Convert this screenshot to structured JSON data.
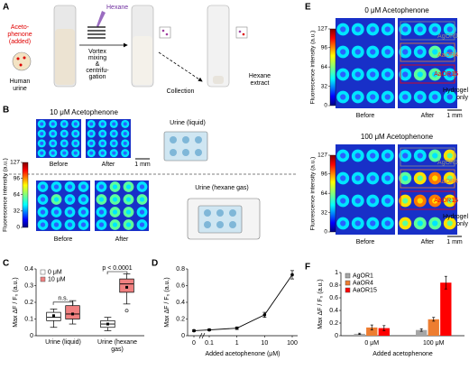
{
  "panel_a": {
    "letter": "A",
    "acetophenone": [
      "Aceto-",
      "phenone",
      "(added)"
    ],
    "urine": [
      "Human",
      "urine"
    ],
    "hexane": "Hexane",
    "vortex": [
      "Vortex",
      "mixing",
      "&",
      "centrifu-",
      "gation"
    ],
    "collection": "Collection",
    "extract": [
      "Hexane",
      "extract"
    ]
  },
  "panel_b": {
    "letter": "B",
    "title": "10 μM Acetophenone",
    "before": "Before",
    "after": "After",
    "scale": "1 mm",
    "liquid": "Urine (liquid)",
    "gas": "Urine (hexane gas)",
    "colorbar_label": "Fluorescence intensity (a.u.)",
    "colorbar_lim": [
      0,
      127
    ],
    "colorbar_ticks": [
      127,
      96,
      64,
      32,
      0
    ]
  },
  "panel_e": {
    "letter": "E",
    "titles": [
      "0 μM Acetophenone",
      "100 μM Acetophenone"
    ],
    "before": "Before",
    "after": "After",
    "scale": "1 mm",
    "colorbar_label": "Fluorescence intensity (a.u.)",
    "colorbar_lim": [
      0,
      127
    ],
    "colorbar_ticks": [
      127,
      96,
      64,
      32,
      0
    ],
    "labels": [
      "AgOR1",
      "AaOR4",
      "AaOR15"
    ],
    "label_colors": [
      "#8c8c8c",
      "#ed7d31",
      "#ff0000"
    ],
    "hydrogel": [
      "Hydrogel",
      "only"
    ]
  },
  "chart_data": [
    {
      "type": "box",
      "letter": "C",
      "categories": [
        "Urine (liquid)",
        "Urine (hexane gas)"
      ],
      "ylabel": "Max ΔF / F₀ (a.u.)",
      "ylim": [
        0,
        0.4
      ],
      "yticks": [
        0,
        0.1,
        0.2,
        0.3,
        0.4
      ],
      "series": [
        {
          "name": "0 μM",
          "color": "#ffffff",
          "min": [
            0.05,
            0.03
          ],
          "q1": [
            0.09,
            0.05
          ],
          "median": [
            0.11,
            0.07
          ],
          "q3": [
            0.14,
            0.09
          ],
          "max": [
            0.16,
            0.11
          ],
          "mean": [
            0.12,
            0.07
          ],
          "outliers": [
            [],
            []
          ]
        },
        {
          "name": "10 μM",
          "color": "#f08080",
          "min": [
            0.07,
            0.19
          ],
          "q1": [
            0.1,
            0.26
          ],
          "median": [
            0.13,
            0.31
          ],
          "q3": [
            0.18,
            0.34
          ],
          "max": [
            0.21,
            0.37
          ],
          "mean": [
            0.13,
            0.29
          ],
          "outliers": [
            [],
            [
              0.15
            ]
          ]
        }
      ],
      "annotations": [
        "n.s.",
        "p < 0.0001"
      ]
    },
    {
      "type": "line",
      "letter": "D",
      "x": [
        0,
        0.1,
        1,
        10,
        100
      ],
      "values": [
        0.06,
        0.07,
        0.09,
        0.25,
        0.73
      ],
      "errors": [
        0.01,
        0.01,
        0.015,
        0.03,
        0.05
      ],
      "xscale": "log",
      "xlim": [
        0,
        100
      ],
      "xticks": [
        0,
        0.1,
        1,
        10,
        100
      ],
      "ylim": [
        0,
        0.8
      ],
      "yticks": [
        0,
        0.2,
        0.4,
        0.6,
        0.8
      ],
      "xlabel": "Added acetophenone (μM)",
      "ylabel": "Max ΔF / F₀ (a.u.)",
      "color": "#000000"
    },
    {
      "type": "bar",
      "letter": "F",
      "categories": [
        "0 μM",
        "100 μM"
      ],
      "series": [
        {
          "name": "AgOR1",
          "color": "#a6a6a6",
          "values": [
            0.03,
            0.09
          ],
          "errors": [
            0.01,
            0.02
          ]
        },
        {
          "name": "AaOR4",
          "color": "#ed7d31",
          "values": [
            0.13,
            0.26
          ],
          "errors": [
            0.04,
            0.03
          ]
        },
        {
          "name": "AaOR15",
          "color": "#ff0000",
          "values": [
            0.12,
            0.84
          ],
          "errors": [
            0.04,
            0.1
          ]
        }
      ],
      "ylim": [
        0,
        1
      ],
      "yticks": [
        0,
        0.2,
        0.4,
        0.6,
        0.8,
        1
      ],
      "xlabel": "Added acetophenone",
      "ylabel": "Max ΔF / F₀ (a.u.)"
    }
  ]
}
